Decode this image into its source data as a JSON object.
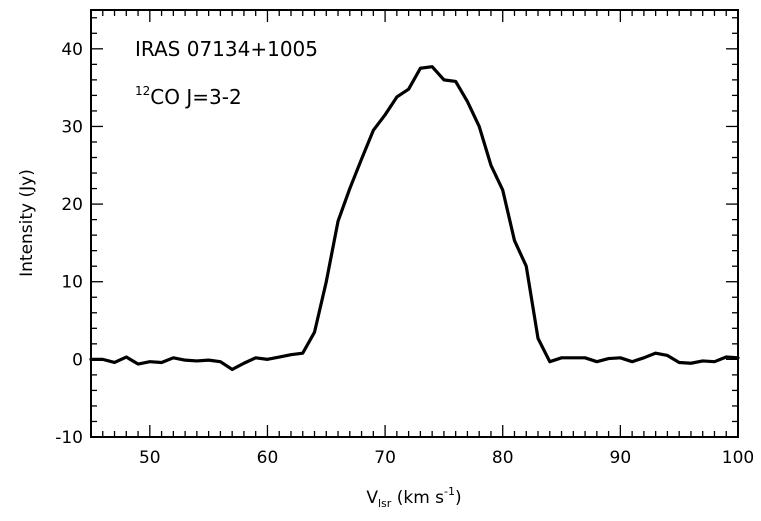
{
  "chart_data": {
    "type": "line",
    "annotations": [
      "IRAS 07134+1005",
      "CO J=3-2"
    ],
    "annotation_superscript": "12",
    "ylabel": "Intensity (Jy)",
    "xlabel": {
      "main": "V",
      "subscript": "lsr",
      "units_prefix": " (km s",
      "units_superscript": "-1",
      "units_suffix": ")"
    },
    "xlim": [
      45,
      100
    ],
    "ylim": [
      -10,
      45
    ],
    "x_ticks": [
      50,
      60,
      70,
      80,
      90,
      100
    ],
    "y_ticks": [
      -10,
      0,
      10,
      20,
      30,
      40
    ],
    "x_minor_step": 1,
    "y_minor_step": 2,
    "grid": false,
    "series": [
      {
        "x": [
          45,
          46,
          47,
          48,
          49,
          50,
          51,
          52,
          53,
          54,
          55,
          56,
          57,
          58,
          59,
          60,
          61,
          62,
          63,
          64,
          65,
          66,
          67,
          68,
          69,
          70,
          71,
          72,
          73,
          74,
          75,
          76,
          77,
          78,
          79,
          80,
          81,
          82,
          83,
          84,
          85,
          86,
          87,
          88,
          89,
          90,
          91,
          92,
          93,
          94,
          95,
          96,
          97,
          98,
          99,
          100
        ],
        "y": [
          0.0,
          0.0,
          -0.4,
          0.3,
          -0.6,
          -0.3,
          -0.4,
          0.2,
          -0.1,
          -0.2,
          -0.1,
          -0.3,
          -1.3,
          -0.5,
          0.2,
          0.0,
          0.3,
          0.6,
          0.8,
          3.5,
          10.0,
          17.8,
          22.0,
          25.8,
          29.5,
          31.5,
          33.8,
          34.8,
          37.5,
          37.7,
          36.0,
          35.8,
          33.2,
          30.0,
          25.0,
          21.8,
          15.3,
          12.0,
          2.7,
          -0.3,
          0.2,
          0.2,
          0.2,
          -0.3,
          0.1,
          0.2,
          -0.3,
          0.2,
          0.8,
          0.5,
          -0.4,
          -0.5,
          -0.2,
          -0.3,
          0.3,
          0.2
        ]
      }
    ]
  }
}
